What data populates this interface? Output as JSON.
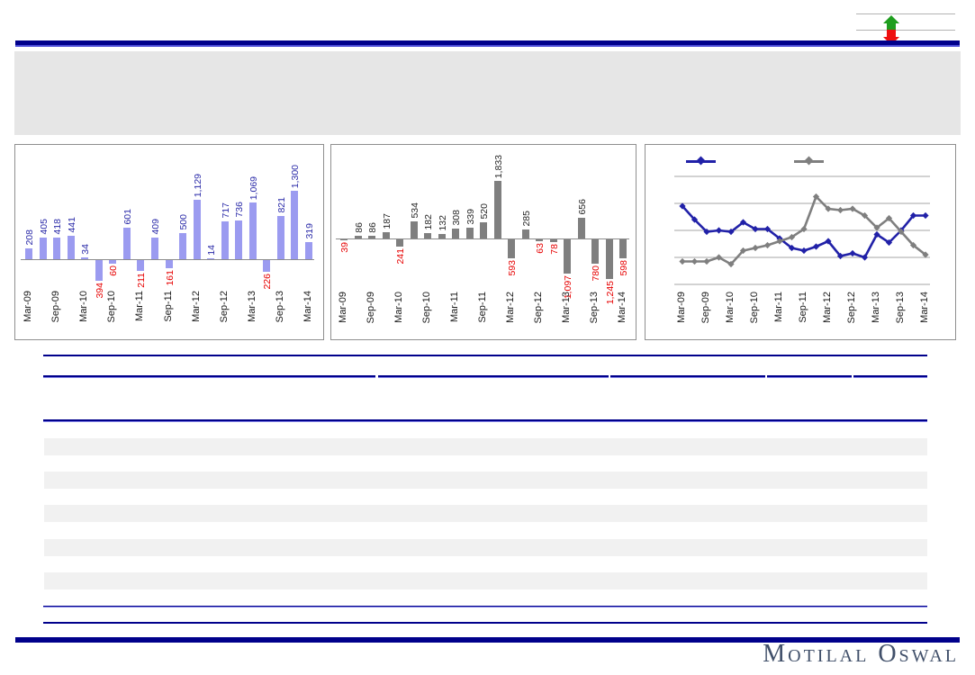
{
  "indicator": {
    "up_icon": "green-up-arrow",
    "down_icon": "red-down-arrow",
    "up_color": "#1f9e1f",
    "down_color": "#ee0f0f"
  },
  "colors": {
    "navy_rule": "#00008B",
    "navy_rule_accent": "#4a4ad6",
    "header_bg": "#e6e6e6",
    "row_stripe": "#f1f1f1",
    "panel_border": "#8f8f8f",
    "logo_color": "#41506a"
  },
  "chart_data": [
    {
      "type": "bar",
      "panel": "left",
      "title": "",
      "x_tick_labels": [
        "Mar-09",
        "Sep-09",
        "Mar-10",
        "Sep-10",
        "Mar-11",
        "Sep-11",
        "Mar-12",
        "Sep-12",
        "Mar-13",
        "Sep-13",
        "Mar-14"
      ],
      "categories": [
        "Mar-09",
        "Jun-09",
        "Sep-09",
        "Dec-09",
        "Mar-10",
        "Jun-10",
        "Sep-10",
        "Dec-10",
        "Mar-11",
        "Jun-11",
        "Sep-11",
        "Dec-11",
        "Mar-12",
        "Jun-12",
        "Sep-12",
        "Dec-12",
        "Mar-13",
        "Jun-13",
        "Sep-13",
        "Dec-13",
        "Mar-14"
      ],
      "values": [
        208,
        405,
        418,
        441,
        34,
        -394,
        -60,
        601,
        -211,
        409,
        -161,
        500,
        1129,
        14,
        717,
        736,
        1069,
        -226,
        821,
        1300,
        319
      ],
      "bar_color": "#9b9bf0",
      "positive_label_color": "#2a2aa8",
      "negative_label_color": "#e60000",
      "grid": false,
      "ylim": [
        -500,
        1500
      ]
    },
    {
      "type": "bar",
      "panel": "middle",
      "title": "",
      "x_tick_labels": [
        "Mar-09",
        "Sep-09",
        "Mar-10",
        "Sep-10",
        "Mar-11",
        "Sep-11",
        "Mar-12",
        "Sep-12",
        "Mar-13",
        "Sep-13",
        "Mar-14"
      ],
      "categories": [
        "Mar-09",
        "Jun-09",
        "Sep-09",
        "Dec-09",
        "Mar-10",
        "Jun-10",
        "Sep-10",
        "Dec-10",
        "Mar-11",
        "Jun-11",
        "Sep-11",
        "Dec-11",
        "Mar-12",
        "Jun-12",
        "Sep-12",
        "Dec-12",
        "Mar-13",
        "Jun-13",
        "Sep-13",
        "Dec-13",
        "Mar-14"
      ],
      "values": [
        -39,
        86,
        86,
        187,
        -241,
        534,
        182,
        132,
        308,
        339,
        520,
        1833,
        -593,
        285,
        -63,
        -78,
        -1097,
        656,
        -780,
        -1245,
        -598
      ],
      "bar_color": "#7f7f7f",
      "positive_label_color": "#262626",
      "negative_label_color": "#e60000",
      "grid": false,
      "ylim": [
        -1400,
        2000
      ]
    },
    {
      "type": "line",
      "panel": "right",
      "title": "",
      "x_tick_labels": [
        "Mar-09",
        "Sep-09",
        "Mar-10",
        "Sep-10",
        "Mar-11",
        "Sep-11",
        "Mar-12",
        "Sep-12",
        "Mar-13",
        "Sep-13",
        "Mar-14"
      ],
      "categories": [
        "Mar-09",
        "Jun-09",
        "Sep-09",
        "Dec-09",
        "Mar-10",
        "Jun-10",
        "Sep-10",
        "Dec-10",
        "Mar-11",
        "Jun-11",
        "Sep-11",
        "Dec-11",
        "Mar-12",
        "Jun-12",
        "Sep-12",
        "Dec-12",
        "Mar-13",
        "Jun-13",
        "Sep-13",
        "Dec-13",
        "Mar-14"
      ],
      "gridline_count": 5,
      "legend_position": "top",
      "legend_labels_visible": false,
      "y_scale_note": "y axis unlabeled; values given in relative gridline units (0 = bottom gridline, 4 = top gridline)",
      "series": [
        {
          "name": "blue-series",
          "label": "",
          "color": "#2121a8",
          "values_rel": [
            2.9,
            2.4,
            1.95,
            2.0,
            1.95,
            2.3,
            2.05,
            2.05,
            1.7,
            1.35,
            1.25,
            1.4,
            1.6,
            1.05,
            1.15,
            1.0,
            1.85,
            1.55,
            2.0,
            2.55,
            2.55
          ]
        },
        {
          "name": "gray-series",
          "label": "",
          "color": "#7f7f7f",
          "values_rel": [
            0.85,
            0.85,
            0.85,
            1.0,
            0.75,
            1.25,
            1.35,
            1.45,
            1.6,
            1.75,
            2.05,
            3.25,
            2.8,
            2.75,
            2.8,
            2.55,
            2.1,
            2.45,
            1.95,
            1.45,
            1.1
          ]
        }
      ]
    }
  ],
  "footer": {
    "logo_text": "Motilal Oswal"
  }
}
